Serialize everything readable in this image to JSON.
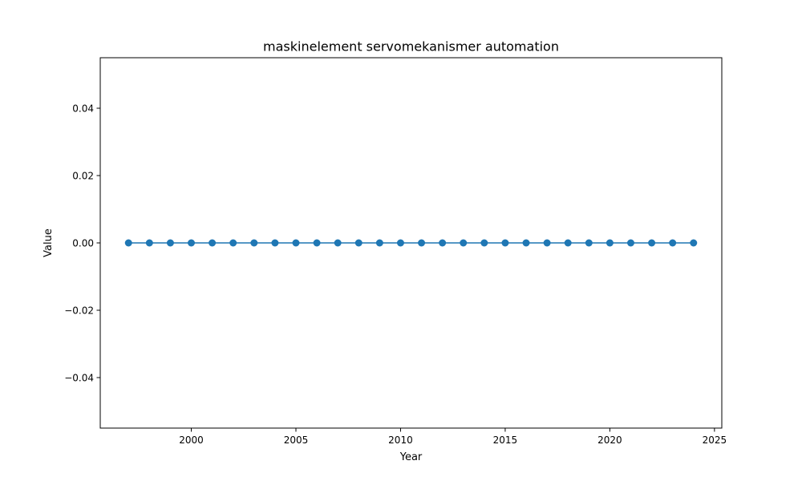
{
  "chart_data": {
    "type": "line",
    "title": "maskinelement servomekanismer automation",
    "xlabel": "Year",
    "ylabel": "Value",
    "x": [
      1997,
      1998,
      1999,
      2000,
      2001,
      2002,
      2003,
      2004,
      2005,
      2006,
      2007,
      2008,
      2009,
      2010,
      2011,
      2012,
      2013,
      2014,
      2015,
      2016,
      2017,
      2018,
      2019,
      2020,
      2021,
      2022,
      2023,
      2024
    ],
    "series": [
      {
        "values": [
          0,
          0,
          0,
          0,
          0,
          0,
          0,
          0,
          0,
          0,
          0,
          0,
          0,
          0,
          0,
          0,
          0,
          0,
          0,
          0,
          0,
          0,
          0,
          0,
          0,
          0,
          0,
          0
        ],
        "color": "#1f77b4",
        "marker": "circle"
      }
    ],
    "xlim": [
      1995.65,
      2025.35
    ],
    "ylim": [
      -0.055,
      0.055
    ],
    "xticks": [
      2000,
      2005,
      2010,
      2015,
      2020,
      2025
    ],
    "xtick_labels": [
      "2000",
      "2005",
      "2010",
      "2015",
      "2020",
      "2025"
    ],
    "yticks": [
      -0.04,
      -0.02,
      0.0,
      0.02,
      0.04
    ],
    "ytick_labels": [
      "−0.04",
      "−0.02",
      "0.00",
      "0.02",
      "0.04"
    ],
    "grid": false,
    "legend": false
  }
}
